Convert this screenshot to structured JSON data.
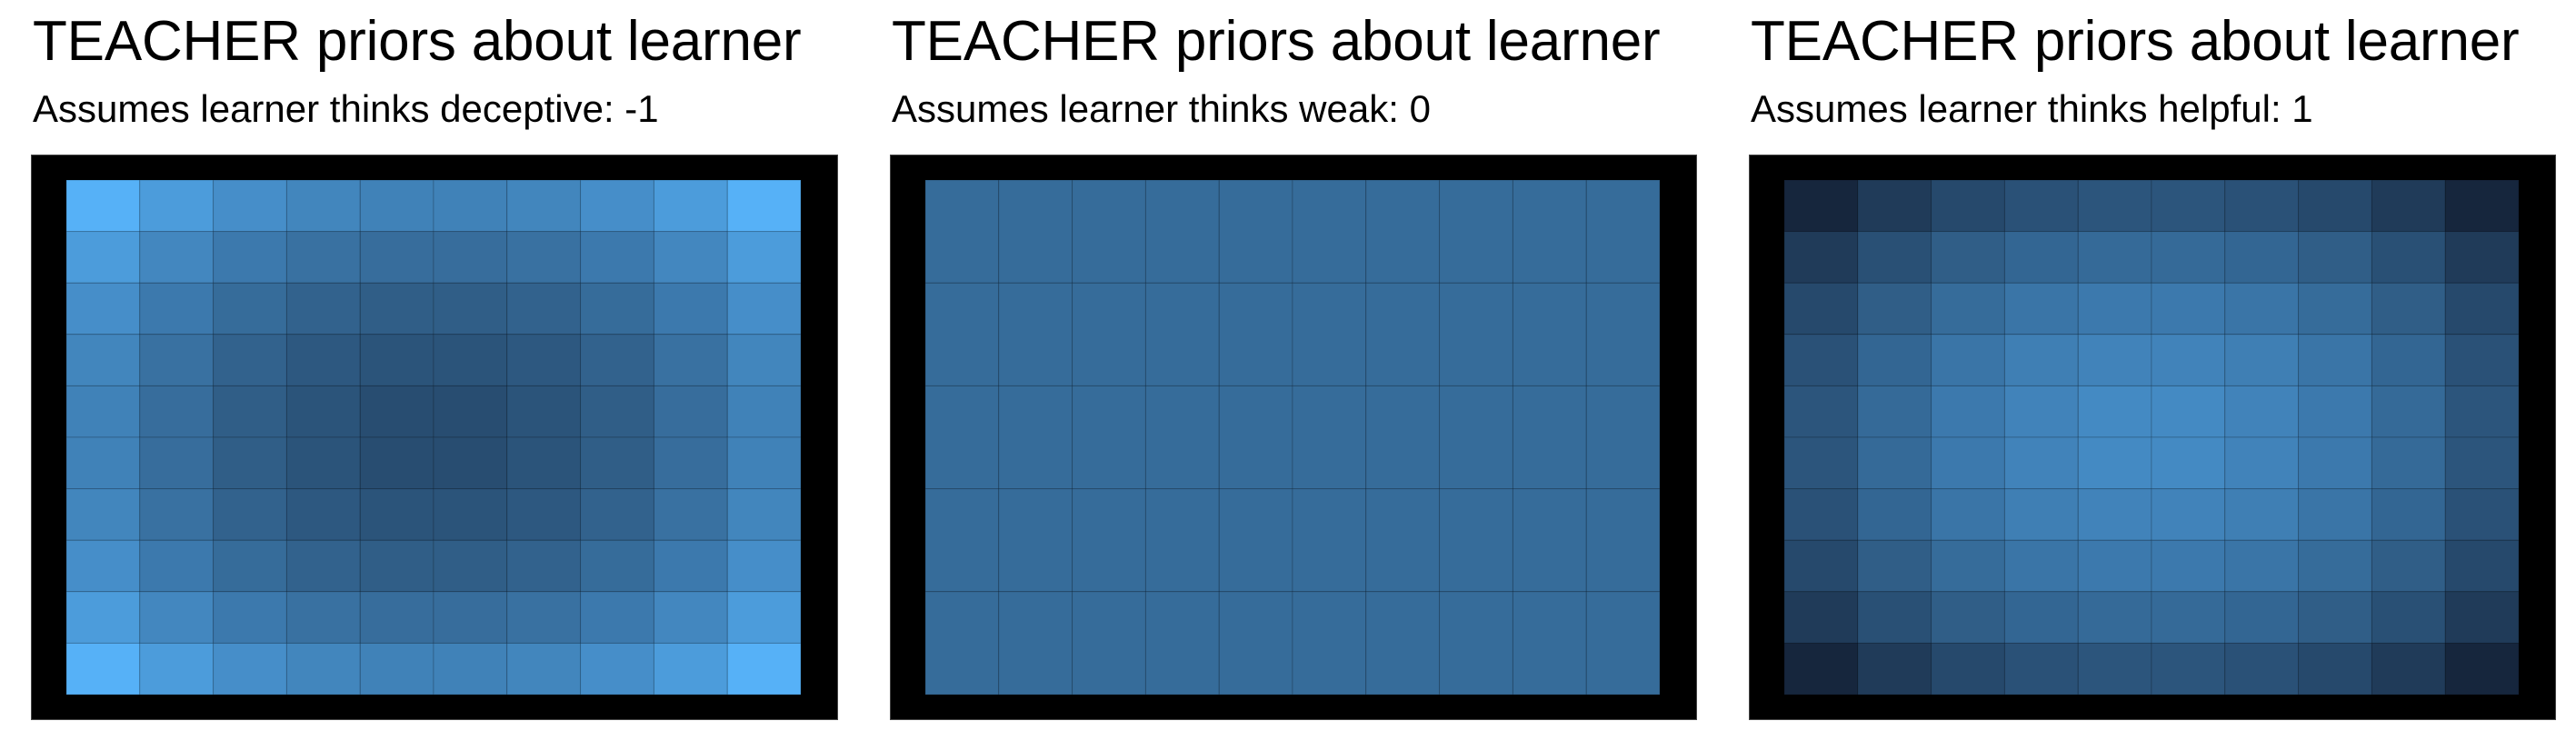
{
  "chart_data": [
    {
      "type": "heatmap",
      "title": "TEACHER priors about learner",
      "subtitle": "Assumes learner thinks deceptive: -1",
      "rows": 10,
      "cols": 10,
      "colormap": {
        "low": "#16263d",
        "high": "#56b1f7"
      },
      "value_range": [
        0,
        1
      ],
      "values": [
        [
          1.0,
          0.85,
          0.75,
          0.69,
          0.66,
          0.66,
          0.69,
          0.75,
          0.85,
          1.0
        ],
        [
          0.85,
          0.7,
          0.6,
          0.54,
          0.51,
          0.51,
          0.54,
          0.6,
          0.7,
          0.85
        ],
        [
          0.75,
          0.6,
          0.5,
          0.43,
          0.4,
          0.4,
          0.43,
          0.5,
          0.6,
          0.75
        ],
        [
          0.69,
          0.54,
          0.43,
          0.36,
          0.33,
          0.33,
          0.36,
          0.43,
          0.54,
          0.69
        ],
        [
          0.66,
          0.51,
          0.4,
          0.33,
          0.28,
          0.28,
          0.33,
          0.4,
          0.51,
          0.66
        ],
        [
          0.66,
          0.51,
          0.4,
          0.33,
          0.28,
          0.28,
          0.33,
          0.4,
          0.51,
          0.66
        ],
        [
          0.69,
          0.54,
          0.43,
          0.36,
          0.33,
          0.33,
          0.36,
          0.43,
          0.54,
          0.69
        ],
        [
          0.75,
          0.6,
          0.5,
          0.43,
          0.4,
          0.4,
          0.43,
          0.5,
          0.6,
          0.75
        ],
        [
          0.85,
          0.7,
          0.6,
          0.54,
          0.51,
          0.51,
          0.54,
          0.6,
          0.7,
          0.85
        ],
        [
          1.0,
          0.85,
          0.75,
          0.69,
          0.66,
          0.66,
          0.69,
          0.75,
          0.85,
          1.0
        ]
      ]
    },
    {
      "type": "heatmap",
      "title": "TEACHER priors about learner",
      "subtitle": "Assumes learner thinks weak: 0",
      "rows": 5,
      "cols": 10,
      "colormap": {
        "low": "#16263d",
        "high": "#56b1f7"
      },
      "value_range": [
        0,
        1
      ],
      "values": [
        [
          0.5,
          0.5,
          0.5,
          0.5,
          0.5,
          0.5,
          0.5,
          0.5,
          0.5,
          0.5
        ],
        [
          0.5,
          0.5,
          0.5,
          0.5,
          0.5,
          0.5,
          0.5,
          0.5,
          0.5,
          0.5
        ],
        [
          0.5,
          0.5,
          0.5,
          0.5,
          0.5,
          0.5,
          0.5,
          0.5,
          0.5,
          0.5
        ],
        [
          0.5,
          0.5,
          0.5,
          0.5,
          0.5,
          0.5,
          0.5,
          0.5,
          0.5,
          0.5
        ],
        [
          0.5,
          0.5,
          0.5,
          0.5,
          0.5,
          0.5,
          0.5,
          0.5,
          0.5,
          0.5
        ]
      ]
    },
    {
      "type": "heatmap",
      "title": "TEACHER priors about learner",
      "subtitle": "Assumes learner thinks helpful: 1",
      "rows": 10,
      "cols": 10,
      "colormap": {
        "low": "#16263d",
        "high": "#56b1f7"
      },
      "value_range": [
        0,
        1
      ],
      "values": [
        [
          0.0,
          0.15,
          0.25,
          0.31,
          0.34,
          0.34,
          0.31,
          0.25,
          0.15,
          0.0
        ],
        [
          0.15,
          0.3,
          0.4,
          0.46,
          0.49,
          0.49,
          0.46,
          0.4,
          0.3,
          0.15
        ],
        [
          0.25,
          0.4,
          0.5,
          0.57,
          0.6,
          0.6,
          0.57,
          0.5,
          0.4,
          0.25
        ],
        [
          0.31,
          0.46,
          0.57,
          0.64,
          0.67,
          0.67,
          0.64,
          0.57,
          0.46,
          0.31
        ],
        [
          0.34,
          0.49,
          0.6,
          0.67,
          0.72,
          0.72,
          0.67,
          0.6,
          0.49,
          0.34
        ],
        [
          0.34,
          0.49,
          0.6,
          0.67,
          0.72,
          0.72,
          0.67,
          0.6,
          0.49,
          0.34
        ],
        [
          0.31,
          0.46,
          0.57,
          0.64,
          0.67,
          0.67,
          0.64,
          0.57,
          0.46,
          0.31
        ],
        [
          0.25,
          0.4,
          0.5,
          0.57,
          0.6,
          0.6,
          0.57,
          0.5,
          0.4,
          0.25
        ],
        [
          0.15,
          0.3,
          0.4,
          0.46,
          0.49,
          0.49,
          0.46,
          0.4,
          0.3,
          0.15
        ],
        [
          0.0,
          0.15,
          0.25,
          0.31,
          0.34,
          0.34,
          0.31,
          0.25,
          0.15,
          0.0
        ]
      ]
    }
  ]
}
